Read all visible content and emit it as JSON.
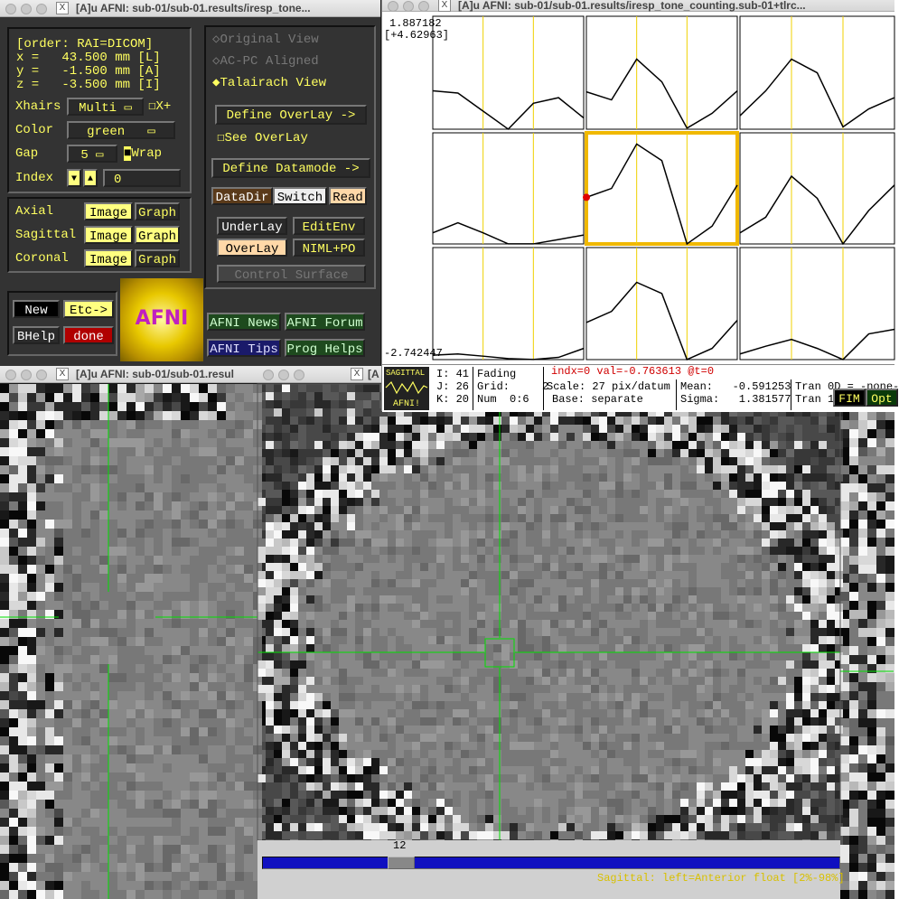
{
  "controller": {
    "title": "[A]u AFNI: sub-01/sub-01.results/iresp_tone...",
    "order": "[order: RAI=DICOM]",
    "coords": [
      "x =   43.500 mm [L]",
      "y =   -1.500 mm [A]",
      "z =   -3.500 mm [I]"
    ],
    "xhairs": {
      "label": "Xhairs",
      "value": "Multi",
      "toggle": "X+"
    },
    "color": {
      "label": "Color",
      "value": "green"
    },
    "gap": {
      "label": "Gap",
      "value": "5",
      "toggle": "Wrap"
    },
    "index": {
      "label": "Index",
      "value": "0"
    },
    "views": [
      {
        "name": "Axial",
        "image": "Image",
        "graph": "Graph"
      },
      {
        "name": "Sagittal",
        "image": "Image",
        "graph": "Graph"
      },
      {
        "name": "Coronal",
        "image": "Image",
        "graph": "Graph"
      }
    ],
    "view_modes": [
      "Original View",
      "AC-PC Aligned",
      "Talairach View"
    ],
    "buttons": {
      "define_overlay": "Define OverLay ->",
      "see_overlay": "See OverLay",
      "define_datamode": "Define Datamode ->",
      "datadir": "DataDir",
      "switch": "Switch",
      "read": "Read",
      "underlay": "UnderLay",
      "editenv": "EditEnv",
      "overlay": "OverLay",
      "niml": "NIML+PO",
      "control_surface": "Control Surface",
      "new": "New",
      "etc": "Etc->",
      "bhelp": "BHelp",
      "done": "done",
      "logo": "AFNI",
      "news": "AFNI News",
      "forum": "AFNI Forum",
      "tips": "AFNI Tips",
      "prog": "Prog Helps"
    }
  },
  "graph": {
    "title": "[A]u AFNI: sub-01/sub-01.results/iresp_tone_counting.sub-01+tlrc...",
    "ylim": [
      -2.742447,
      1.887182
    ],
    "range_label": "[+4.62963]",
    "cells": [
      {
        "values": [
          -1.17,
          -1.26,
          -2.0,
          -2.74,
          -1.68,
          -1.45,
          -2.28
        ]
      },
      {
        "values": [
          -1.21,
          -1.54,
          0.13,
          -0.8,
          -2.7,
          -2.09,
          -1.17
        ]
      },
      {
        "values": [
          -2.19,
          -1.17,
          0.13,
          -0.43,
          -2.65,
          -1.91,
          -1.45
        ]
      },
      {
        "values": [
          -2.28,
          -1.86,
          -2.28,
          -2.74,
          -2.74,
          -2.56,
          -2.37
        ]
      },
      {
        "values": [
          -0.8,
          -0.43,
          1.42,
          0.73,
          -2.74,
          -2.0,
          -0.29
        ]
      },
      {
        "values": [
          -2.28,
          -1.63,
          0.08,
          -0.84,
          -2.74,
          -1.35,
          -0.29
        ]
      },
      {
        "values": [
          -2.56,
          -2.51,
          -2.6,
          -2.7,
          -2.74,
          -2.65,
          -2.28
        ]
      },
      {
        "values": [
          -1.21,
          -0.75,
          0.45,
          -0.01,
          -2.74,
          -2.28,
          -1.12
        ]
      },
      {
        "values": [
          -2.51,
          -2.19,
          -1.91,
          -2.28,
          -2.74,
          -1.68,
          -1.49
        ]
      }
    ],
    "info": {
      "i": "I: 41",
      "j": "J: 26",
      "k": "K: 20",
      "fading": "Fading",
      "grid": "Grid:     2",
      "num": "Num  0:6",
      "indx": "indx=0 val=-0.763613 @t=0",
      "scale": "Scale: 27 pix/datum",
      "base": "Base: separate",
      "mean": "Mean:   -0.591253",
      "sigma": "Sigma:   1.381577",
      "tran0": "Tran 0D = -none-",
      "tran1": "Tran 1",
      "fim": "FIM",
      "opt": "Opt",
      "logo_top": "SAGITTAL",
      "logo_bottom": "AFNI!"
    }
  },
  "images": {
    "left_title": "[A]u AFNI: sub-01/sub-01.resul",
    "center_title": "[A",
    "slice": "12",
    "status": "Sagittal: left=Anterior float [2%-98%]"
  }
}
